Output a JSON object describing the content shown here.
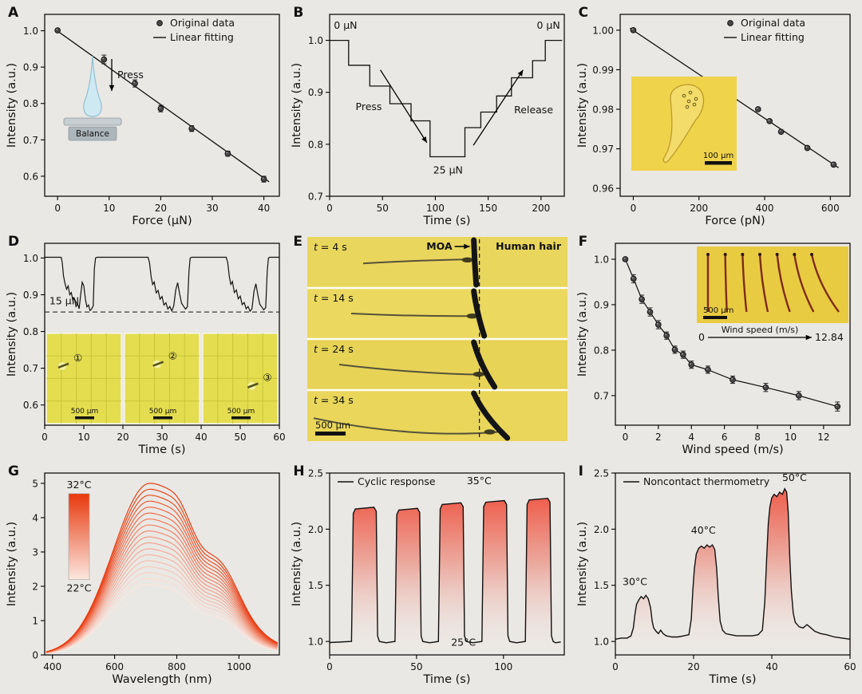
{
  "figure": {
    "background": "#eae8e4"
  },
  "colors": {
    "background": "#eae8e4",
    "curve": "#111111",
    "micrograph_yellow": "#e9d65c",
    "gradient_red": "#ee5340"
  },
  "chart_data": [
    {
      "panel": "A",
      "type": "scatter-line",
      "xlabel": "Force (µN)",
      "ylabel": "Intensity (a.u.)",
      "xlim": [
        -2.5,
        43
      ],
      "ylim": [
        0.545,
        1.045
      ],
      "xticks": [
        0,
        10,
        20,
        30,
        40
      ],
      "xtick_labels": [
        "0",
        "10",
        "20",
        "30",
        "40"
      ],
      "yticks": [
        0.6,
        0.7,
        0.8,
        0.9,
        1.0
      ],
      "ytick_labels": [
        "0.6",
        "0.7",
        "0.8",
        "0.9",
        "1.0"
      ],
      "legend": [
        {
          "marker": "dot",
          "label": "Original data"
        },
        {
          "marker": "line",
          "label": "Linear fitting"
        }
      ],
      "scatter": {
        "x": [
          0,
          9,
          15,
          20,
          26,
          33,
          40
        ],
        "y": [
          1.001,
          0.921,
          0.855,
          0.786,
          0.731,
          0.662,
          0.592
        ],
        "yerr": [
          0.004,
          0.012,
          0.01,
          0.009,
          0.008,
          0.007,
          0.008
        ]
      },
      "fit_line": {
        "x": [
          -0.5,
          41
        ],
        "y": [
          1.004,
          0.585
        ]
      },
      "inset": {
        "type": "droplet-balance",
        "press_label": "Press",
        "balance_label": "Balance",
        "drop_color": "#cfe9f2"
      }
    },
    {
      "panel": "B",
      "type": "steps",
      "xlabel": "Time (s)",
      "ylabel": "Intensity (a.u.)",
      "xlim": [
        0,
        222
      ],
      "ylim": [
        0.7,
        1.05
      ],
      "xticks": [
        0,
        50,
        100,
        150,
        200
      ],
      "xtick_labels": [
        "0",
        "50",
        "100",
        "150",
        "200"
      ],
      "yticks": [
        0.7,
        0.8,
        0.9,
        1.0
      ],
      "ytick_labels": [
        "0.7",
        "0.8",
        "0.9",
        "1.0"
      ],
      "steps": [
        [
          0,
          18,
          1.0
        ],
        [
          18,
          38,
          0.952
        ],
        [
          38,
          57,
          0.912
        ],
        [
          57,
          77,
          0.878
        ],
        [
          77,
          95,
          0.845
        ],
        [
          95,
          128,
          0.776
        ],
        [
          128,
          143,
          0.832
        ],
        [
          143,
          158,
          0.862
        ],
        [
          158,
          172,
          0.893
        ],
        [
          172,
          192,
          0.928
        ],
        [
          192,
          204,
          0.961
        ],
        [
          204,
          220,
          1.0
        ]
      ],
      "annotations": [
        {
          "x": 4,
          "y": 1.022,
          "text": "0 µN",
          "anchor": "start"
        },
        {
          "x": 218,
          "y": 1.022,
          "text": "0 µN",
          "anchor": "end"
        },
        {
          "x": 112,
          "y": 0.744,
          "text": "25 µN",
          "anchor": "middle"
        }
      ],
      "arrows": [
        {
          "x1": 48,
          "y1": 0.943,
          "x2": 92,
          "y2": 0.803,
          "label": "Press",
          "lx": 37,
          "ly": 0.866
        },
        {
          "x1": 136,
          "y1": 0.798,
          "x2": 183,
          "y2": 0.943,
          "label": "Release",
          "lx": 193,
          "ly": 0.86
        }
      ]
    },
    {
      "panel": "C",
      "type": "scatter-line",
      "xlabel": "Force (pN)",
      "ylabel": "Intensity (a.u.)",
      "xlim": [
        -40,
        660
      ],
      "ylim": [
        0.958,
        1.004
      ],
      "xticks": [
        0,
        200,
        400,
        600
      ],
      "xtick_labels": [
        "0",
        "200",
        "400",
        "600"
      ],
      "yticks": [
        0.96,
        0.97,
        0.98,
        0.99,
        1.0
      ],
      "ytick_labels": [
        "0.96",
        "0.97",
        "0.98",
        "0.99",
        "1.00"
      ],
      "legend": [
        {
          "marker": "dot",
          "label": "Original data"
        },
        {
          "marker": "line",
          "label": "Linear fitting"
        }
      ],
      "scatter": {
        "x": [
          0,
          290,
          380,
          415,
          450,
          530,
          610
        ],
        "y": [
          1.0,
          0.9845,
          0.98,
          0.977,
          0.9743,
          0.9702,
          0.966
        ],
        "yerr": [
          0,
          0,
          0,
          0,
          0,
          0,
          0
        ]
      },
      "fit_line": {
        "x": [
          -10,
          625
        ],
        "y": [
          1.0005,
          0.9652
        ]
      },
      "inset": {
        "type": "micro-droplet",
        "scalebar": "100 µm"
      }
    },
    {
      "panel": "D",
      "type": "line",
      "xlabel": "Time (s)",
      "ylabel": "Intensity (a.u.)",
      "xlim": [
        0,
        60
      ],
      "ylim": [
        0.545,
        1.04
      ],
      "xticks": [
        0,
        10,
        20,
        30,
        40,
        50,
        60
      ],
      "xtick_labels": [
        "0",
        "10",
        "20",
        "30",
        "40",
        "50",
        "60"
      ],
      "yticks": [
        0.6,
        0.7,
        0.8,
        0.9,
        1.0
      ],
      "ytick_labels": [
        "0.6",
        "0.7",
        "0.8",
        "0.9",
        "1.0"
      ],
      "threshold": {
        "y": 0.853,
        "label": "15 µN",
        "lx": 1.2,
        "ly": 0.874
      },
      "line": [
        [
          0,
          1.002
        ],
        [
          4.2,
          1.002
        ],
        [
          4.5,
          0.988
        ],
        [
          4.8,
          0.952
        ],
        [
          5.2,
          0.93
        ],
        [
          5.6,
          0.915
        ],
        [
          6,
          0.924
        ],
        [
          6.4,
          0.9
        ],
        [
          6.8,
          0.906
        ],
        [
          7.2,
          0.885
        ],
        [
          7.6,
          0.89
        ],
        [
          8,
          0.868
        ],
        [
          8.4,
          0.875
        ],
        [
          8.8,
          0.862
        ],
        [
          9.2,
          0.9
        ],
        [
          9.6,
          0.934
        ],
        [
          10,
          0.924
        ],
        [
          10.4,
          0.888
        ],
        [
          10.8,
          0.867
        ],
        [
          11.2,
          0.872
        ],
        [
          11.6,
          0.857
        ],
        [
          12,
          0.861
        ],
        [
          12.4,
          0.87
        ],
        [
          12.7,
          0.97
        ],
        [
          13,
          1.0
        ],
        [
          13.4,
          1.002
        ],
        [
          26.4,
          1.002
        ],
        [
          26.8,
          0.988
        ],
        [
          27.2,
          0.95
        ],
        [
          27.6,
          0.928
        ],
        [
          28,
          0.935
        ],
        [
          28.5,
          0.905
        ],
        [
          29,
          0.912
        ],
        [
          29.5,
          0.888
        ],
        [
          30,
          0.895
        ],
        [
          30.5,
          0.872
        ],
        [
          31,
          0.878
        ],
        [
          31.5,
          0.861
        ],
        [
          32,
          0.868
        ],
        [
          32.5,
          0.856
        ],
        [
          33,
          0.87
        ],
        [
          33.5,
          0.913
        ],
        [
          34,
          0.933
        ],
        [
          34.5,
          0.903
        ],
        [
          35,
          0.877
        ],
        [
          35.5,
          0.869
        ],
        [
          36,
          0.861
        ],
        [
          36.5,
          0.867
        ],
        [
          36.9,
          0.965
        ],
        [
          37.2,
          1.0
        ],
        [
          37.6,
          1.002
        ],
        [
          46.4,
          1.002
        ],
        [
          46.8,
          0.988
        ],
        [
          47.2,
          0.95
        ],
        [
          47.6,
          0.928
        ],
        [
          48,
          0.936
        ],
        [
          48.5,
          0.906
        ],
        [
          49,
          0.913
        ],
        [
          49.5,
          0.889
        ],
        [
          50,
          0.896
        ],
        [
          50.5,
          0.873
        ],
        [
          51,
          0.879
        ],
        [
          51.5,
          0.862
        ],
        [
          52,
          0.868
        ],
        [
          52.5,
          0.855
        ],
        [
          53,
          0.862
        ],
        [
          53.5,
          0.909
        ],
        [
          54,
          0.93
        ],
        [
          54.5,
          0.899
        ],
        [
          55,
          0.874
        ],
        [
          55.5,
          0.867
        ],
        [
          56,
          0.859
        ],
        [
          56.5,
          0.865
        ],
        [
          56.9,
          0.963
        ],
        [
          57.2,
          1.0
        ],
        [
          57.6,
          1.002
        ],
        [
          60,
          1.002
        ]
      ],
      "inset": {
        "type": "micro-trio",
        "labels": [
          "①",
          "②",
          "③"
        ],
        "scalebar": "500 µm"
      }
    },
    {
      "panel": "E",
      "type": "image-sequence",
      "frames": [
        {
          "time": "t = 4 s"
        },
        {
          "time": "t = 14 s"
        },
        {
          "time": "t = 24 s"
        },
        {
          "time": "t = 34 s"
        }
      ],
      "moa_label": "MOA",
      "hair_label": "Human hair",
      "scalebar": "500 µm"
    },
    {
      "panel": "F",
      "type": "scatter-line",
      "xlabel": "Wind speed (m/s)",
      "ylabel": "Intensity (a.u.)",
      "xlim": [
        -0.6,
        13.6
      ],
      "ylim": [
        0.635,
        1.035
      ],
      "xticks": [
        0,
        2,
        4,
        6,
        8,
        10,
        12
      ],
      "xtick_labels": [
        "0",
        "2",
        "4",
        "6",
        "8",
        "10",
        "12"
      ],
      "yticks": [
        0.7,
        0.8,
        0.9,
        1.0
      ],
      "ytick_labels": [
        "0.7",
        "0.8",
        "0.9",
        "1.0"
      ],
      "connect": true,
      "scatter": {
        "x": [
          0,
          0.5,
          1,
          1.5,
          2,
          2.5,
          3,
          3.5,
          4,
          5,
          6.5,
          8.5,
          10.5,
          12.84
        ],
        "y": [
          1.0,
          0.957,
          0.912,
          0.884,
          0.856,
          0.832,
          0.801,
          0.79,
          0.768,
          0.757,
          0.735,
          0.718,
          0.7,
          0.676
        ],
        "yerr": [
          0.003,
          0.009,
          0.009,
          0.009,
          0.009,
          0.008,
          0.008,
          0.008,
          0.008,
          0.008,
          0.008,
          0.009,
          0.009,
          0.01
        ]
      },
      "inset": {
        "type": "fiber-fan",
        "scalebar": "500 µm",
        "axis_label": "Wind speed (m/s)",
        "from": "0",
        "to": "12.84"
      }
    },
    {
      "panel": "G",
      "type": "spectra",
      "xlabel": "Wavelength (nm)",
      "ylabel": "Intensity (a.u.)",
      "xlim": [
        375,
        1130
      ],
      "ylim": [
        0,
        5.3
      ],
      "xticks": [
        400,
        600,
        800,
        1000
      ],
      "xtick_labels": [
        "400",
        "600",
        "800",
        "1000"
      ],
      "yticks": [
        0,
        1,
        2,
        3,
        4,
        5
      ],
      "ytick_labels": [
        "0",
        "1",
        "2",
        "3",
        "4",
        "5"
      ],
      "spectra": {
        "n": 18,
        "peak_nm": 705,
        "amp_min": 2.05,
        "amp_max": 5.0,
        "color_low": "#fbe7e0",
        "color_high": "#e8380c"
      },
      "colorbar": {
        "top_label": "32°C",
        "bottom_label": "22°C"
      }
    },
    {
      "panel": "H",
      "type": "cyclic",
      "xlabel": "Time (s)",
      "ylabel": "Intensity (a.u.)",
      "xlim": [
        0,
        135
      ],
      "ylim": [
        0.88,
        2.5
      ],
      "xticks": [
        0,
        50,
        100
      ],
      "xtick_labels": [
        "0",
        "50",
        "100"
      ],
      "yticks": [
        1.0,
        1.5,
        2.0,
        2.5
      ],
      "ytick_labels": [
        "1.0",
        "1.5",
        "2.0",
        "2.5"
      ],
      "legend_label": "Cyclic response",
      "baseline": 1.0,
      "pulses": [
        [
          13,
          27,
          2.18
        ],
        [
          38,
          52,
          2.17
        ],
        [
          63,
          77,
          2.22
        ],
        [
          88,
          102,
          2.24
        ],
        [
          113,
          127,
          2.26
        ]
      ],
      "annotations": [
        {
          "x": 86,
          "y": 2.4,
          "text": "35°C"
        },
        {
          "x": 77,
          "y": 0.962,
          "text": "25°C"
        }
      ],
      "fill_top": "#ee5340"
    },
    {
      "panel": "I",
      "type": "peaks",
      "xlabel": "Time (s)",
      "ylabel": "Intensity (a.u.)",
      "xlim": [
        0,
        60
      ],
      "ylim": [
        0.88,
        2.5
      ],
      "xticks": [
        0,
        20,
        40,
        60
      ],
      "xtick_labels": [
        "0",
        "20",
        "40",
        "60"
      ],
      "yticks": [
        1.0,
        1.5,
        2.0,
        2.5
      ],
      "ytick_labels": [
        "1.0",
        "1.5",
        "2.0",
        "2.5"
      ],
      "legend_label": "Noncontact thermometry",
      "line": [
        [
          0,
          1.02
        ],
        [
          1.5,
          1.03
        ],
        [
          3,
          1.03
        ],
        [
          4,
          1.05
        ],
        [
          4.6,
          1.12
        ],
        [
          5,
          1.24
        ],
        [
          5.4,
          1.33
        ],
        [
          6,
          1.37
        ],
        [
          6.6,
          1.4
        ],
        [
          7.2,
          1.38
        ],
        [
          7.8,
          1.41
        ],
        [
          8.4,
          1.38
        ],
        [
          9,
          1.3
        ],
        [
          9.4,
          1.18
        ],
        [
          9.8,
          1.12
        ],
        [
          10.4,
          1.09
        ],
        [
          11,
          1.07
        ],
        [
          11.6,
          1.1
        ],
        [
          12.2,
          1.07
        ],
        [
          13,
          1.05
        ],
        [
          14.5,
          1.04
        ],
        [
          16,
          1.04
        ],
        [
          17.5,
          1.05
        ],
        [
          18.8,
          1.06
        ],
        [
          19.4,
          1.2
        ],
        [
          19.8,
          1.45
        ],
        [
          20.2,
          1.65
        ],
        [
          20.7,
          1.78
        ],
        [
          21.3,
          1.83
        ],
        [
          22,
          1.85
        ],
        [
          22.7,
          1.83
        ],
        [
          23.4,
          1.86
        ],
        [
          24.1,
          1.84
        ],
        [
          24.8,
          1.86
        ],
        [
          25.4,
          1.82
        ],
        [
          25.9,
          1.65
        ],
        [
          26.3,
          1.4
        ],
        [
          26.8,
          1.18
        ],
        [
          27.4,
          1.1
        ],
        [
          28.2,
          1.07
        ],
        [
          29.5,
          1.06
        ],
        [
          31,
          1.05
        ],
        [
          33,
          1.05
        ],
        [
          35,
          1.05
        ],
        [
          36.5,
          1.06
        ],
        [
          37.6,
          1.1
        ],
        [
          38.2,
          1.35
        ],
        [
          38.7,
          1.75
        ],
        [
          39.1,
          2.05
        ],
        [
          39.5,
          2.2
        ],
        [
          40,
          2.28
        ],
        [
          40.6,
          2.31
        ],
        [
          41.3,
          2.29
        ],
        [
          42,
          2.33
        ],
        [
          42.7,
          2.31
        ],
        [
          43.3,
          2.36
        ],
        [
          43.8,
          2.33
        ],
        [
          44.2,
          2.15
        ],
        [
          44.6,
          1.75
        ],
        [
          45,
          1.45
        ],
        [
          45.5,
          1.25
        ],
        [
          46,
          1.17
        ],
        [
          47,
          1.13
        ],
        [
          48,
          1.12
        ],
        [
          49,
          1.15
        ],
        [
          50,
          1.12
        ],
        [
          51,
          1.09
        ],
        [
          52.5,
          1.07
        ],
        [
          54,
          1.06
        ],
        [
          56,
          1.04
        ],
        [
          58,
          1.03
        ],
        [
          60,
          1.02
        ]
      ],
      "annotations": [
        {
          "x": 5,
          "y": 1.5,
          "text": "30°C"
        },
        {
          "x": 22.5,
          "y": 1.96,
          "text": "40°C"
        },
        {
          "x": 45.8,
          "y": 2.43,
          "text": "50°C"
        }
      ],
      "fill_top": "#ee5340"
    }
  ]
}
